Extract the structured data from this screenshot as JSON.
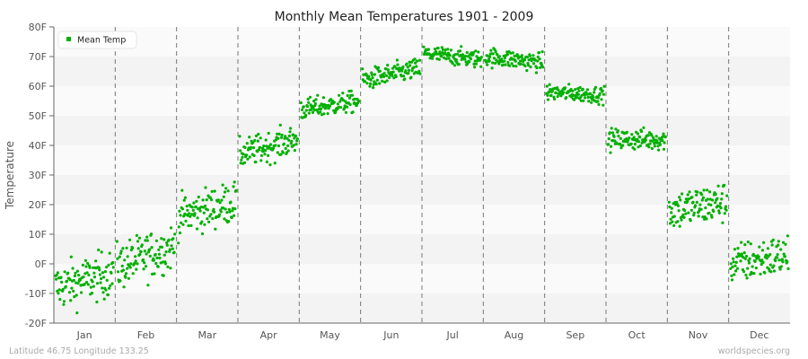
{
  "chart_data": {
    "type": "scatter",
    "title": "Monthly Mean Temperatures 1901 - 2009",
    "xlabel": "",
    "ylabel": "Temperature",
    "ylim": [
      -20,
      80
    ],
    "y_ticks": [
      "-20F",
      "-10F",
      "0F",
      "10F",
      "20F",
      "30F",
      "40F",
      "50F",
      "60F",
      "70F",
      "80F"
    ],
    "categories": [
      "Jan",
      "Feb",
      "Mar",
      "Apr",
      "May",
      "Jun",
      "Jul",
      "Aug",
      "Sep",
      "Oct",
      "Nov",
      "Dec"
    ],
    "legend": {
      "label": "Mean Temp",
      "position": "top-left"
    },
    "series_color": "#00b000",
    "years": [
      1901,
      2009
    ],
    "monthly_summary": [
      {
        "month": "Jan",
        "start_mean": -8,
        "end_mean": -3,
        "spread": 4
      },
      {
        "month": "Feb",
        "start_mean": -1,
        "end_mean": 6,
        "spread": 4
      },
      {
        "month": "Mar",
        "start_mean": 16,
        "end_mean": 21,
        "spread": 3.5
      },
      {
        "month": "Apr",
        "start_mean": 37,
        "end_mean": 42,
        "spread": 2.5
      },
      {
        "month": "May",
        "start_mean": 52,
        "end_mean": 55,
        "spread": 1.8
      },
      {
        "month": "Jun",
        "start_mean": 62,
        "end_mean": 66,
        "spread": 1.8
      },
      {
        "month": "Jul",
        "start_mean": 71,
        "end_mean": 69,
        "spread": 1.5
      },
      {
        "month": "Aug",
        "start_mean": 70,
        "end_mean": 68,
        "spread": 1.6
      },
      {
        "month": "Sep",
        "start_mean": 58,
        "end_mean": 57,
        "spread": 1.4
      },
      {
        "month": "Oct",
        "start_mean": 42,
        "end_mean": 42,
        "spread": 1.8
      },
      {
        "month": "Nov",
        "start_mean": 18,
        "end_mean": 21,
        "spread": 3.5
      },
      {
        "month": "Dec",
        "start_mean": 0,
        "end_mean": 3,
        "spread": 3.5
      }
    ]
  },
  "footer": {
    "left": "Latitude 46.75 Longitude 133.25",
    "right": "worldspecies.org"
  }
}
